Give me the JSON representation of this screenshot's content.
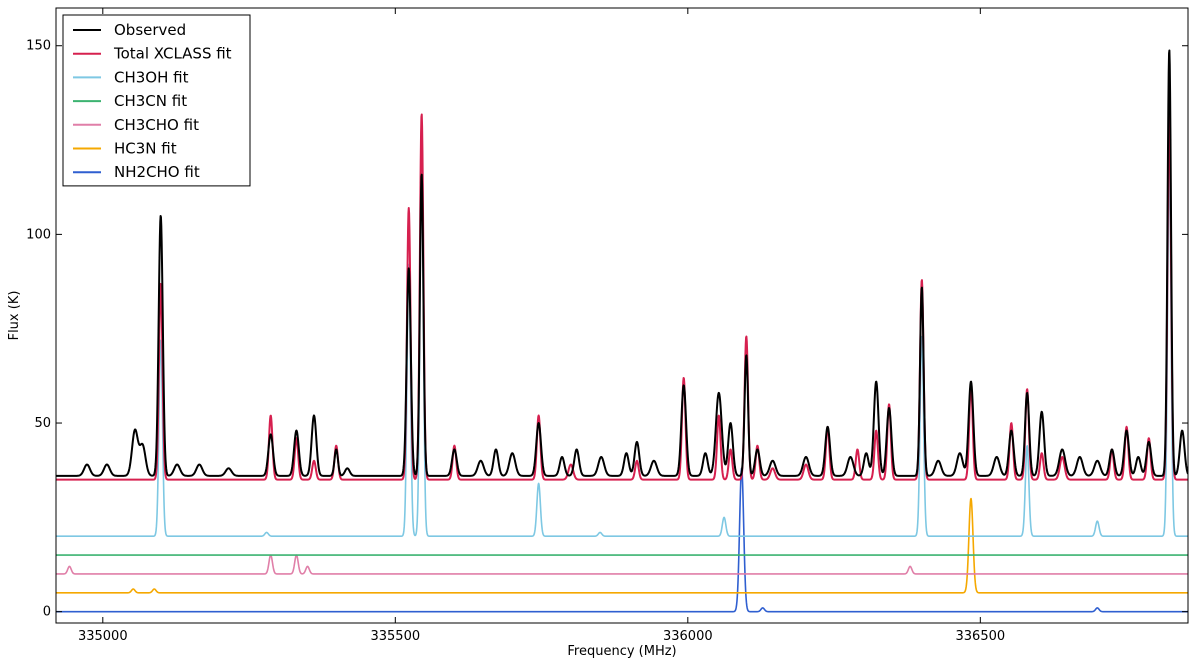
{
  "chart_data": {
    "type": "line",
    "xlabel": "Frequency (MHz)",
    "ylabel": "Flux (K)",
    "xlim": [
      334920,
      336855
    ],
    "ylim": [
      -3,
      160
    ],
    "xticks": [
      335000,
      335500,
      336000,
      336500
    ],
    "yticks": [
      0,
      50,
      100,
      150
    ],
    "grid": false,
    "legend_position": "top-left",
    "series": [
      {
        "name": "Observed",
        "color": "#000000",
        "baseline": 36,
        "peaks": [
          [
            334973,
            3,
            5
          ],
          [
            335007,
            3,
            5
          ],
          [
            335055,
            12,
            5
          ],
          [
            335068,
            8,
            5
          ],
          [
            335099,
            69,
            3.5
          ],
          [
            335127,
            3,
            5
          ],
          [
            335165,
            3,
            5
          ],
          [
            335215,
            2,
            5
          ],
          [
            335287,
            11,
            4
          ],
          [
            335331,
            12,
            4
          ],
          [
            335361,
            16,
            4
          ],
          [
            335399,
            7,
            3
          ],
          [
            335418,
            2,
            4
          ],
          [
            335523,
            55,
            3.5
          ],
          [
            335545,
            80,
            3
          ],
          [
            335601,
            7,
            4
          ],
          [
            335646,
            4,
            5
          ],
          [
            335672,
            7,
            4
          ],
          [
            335700,
            6,
            5
          ],
          [
            335745,
            14,
            4
          ],
          [
            335785,
            5,
            4
          ],
          [
            335810,
            7,
            4
          ],
          [
            335852,
            5,
            5
          ],
          [
            335895,
            6,
            4
          ],
          [
            335913,
            9,
            4
          ],
          [
            335942,
            4,
            5
          ],
          [
            335993,
            24,
            4
          ],
          [
            336030,
            6,
            4
          ],
          [
            336053,
            22,
            5
          ],
          [
            336073,
            14,
            4
          ],
          [
            336100,
            32,
            3
          ],
          [
            336119,
            7,
            4
          ],
          [
            336145,
            4,
            5
          ],
          [
            336202,
            5,
            5
          ],
          [
            336239,
            13,
            4
          ],
          [
            336278,
            5,
            5
          ],
          [
            336305,
            6,
            4
          ],
          [
            336322,
            25,
            4
          ],
          [
            336344,
            18,
            4
          ],
          [
            336400,
            50,
            3
          ],
          [
            336428,
            4,
            5
          ],
          [
            336465,
            6,
            5
          ],
          [
            336484,
            25,
            4
          ],
          [
            336528,
            5,
            5
          ],
          [
            336553,
            12,
            4
          ],
          [
            336580,
            22,
            3.5
          ],
          [
            336605,
            17,
            4
          ],
          [
            336640,
            7,
            5
          ],
          [
            336670,
            5,
            5
          ],
          [
            336700,
            4,
            5
          ],
          [
            336725,
            7,
            4
          ],
          [
            336750,
            12,
            4
          ],
          [
            336770,
            5,
            4
          ],
          [
            336788,
            9,
            4
          ],
          [
            336823,
            113,
            3
          ],
          [
            336845,
            12,
            4
          ]
        ]
      },
      {
        "name": "Total XCLASS fit",
        "color": "#d6204f",
        "baseline": 35,
        "peaks": [
          [
            335099,
            52,
            3
          ],
          [
            335287,
            17,
            3
          ],
          [
            335331,
            11,
            3
          ],
          [
            335361,
            5,
            3
          ],
          [
            335399,
            9,
            3
          ],
          [
            335523,
            72,
            3
          ],
          [
            335545,
            97,
            3
          ],
          [
            335601,
            9,
            3
          ],
          [
            335745,
            17,
            3
          ],
          [
            335800,
            4,
            4
          ],
          [
            335913,
            5,
            3
          ],
          [
            335993,
            27,
            3
          ],
          [
            336053,
            17,
            3
          ],
          [
            336073,
            8,
            3
          ],
          [
            336100,
            38,
            3
          ],
          [
            336119,
            9,
            3
          ],
          [
            336145,
            3,
            4
          ],
          [
            336202,
            4,
            4
          ],
          [
            336239,
            14,
            3
          ],
          [
            336290,
            8,
            3
          ],
          [
            336322,
            13,
            3
          ],
          [
            336344,
            20,
            3
          ],
          [
            336400,
            53,
            3
          ],
          [
            336484,
            25,
            3
          ],
          [
            336553,
            15,
            3
          ],
          [
            336580,
            24,
            3
          ],
          [
            336605,
            7,
            3
          ],
          [
            336640,
            6,
            4
          ],
          [
            336725,
            8,
            3
          ],
          [
            336750,
            14,
            3
          ],
          [
            336788,
            11,
            3
          ],
          [
            336823,
            97,
            3
          ]
        ]
      },
      {
        "name": "CH3OH fit",
        "color": "#7ec8e3",
        "baseline": 20,
        "peaks": [
          [
            335099,
            52,
            3
          ],
          [
            335280,
            1,
            3
          ],
          [
            335523,
            72,
            3
          ],
          [
            335545,
            97,
            3
          ],
          [
            335745,
            14,
            3
          ],
          [
            335850,
            1,
            3
          ],
          [
            336062,
            5,
            3
          ],
          [
            336400,
            53,
            3
          ],
          [
            336580,
            24,
            3
          ],
          [
            336700,
            4,
            3
          ],
          [
            336823,
            97,
            3
          ]
        ]
      },
      {
        "name": "CH3CN fit",
        "color": "#3cb371",
        "baseline": 15,
        "peaks": []
      },
      {
        "name": "CH3CHO fit",
        "color": "#e07fa8",
        "baseline": 10,
        "peaks": [
          [
            334943,
            2,
            3
          ],
          [
            335287,
            5,
            3
          ],
          [
            335331,
            5,
            3
          ],
          [
            335350,
            2,
            3
          ],
          [
            336380,
            2,
            3
          ]
        ]
      },
      {
        "name": "HC3N fit",
        "color": "#f5a800",
        "baseline": 5,
        "peaks": [
          [
            335052,
            1,
            3
          ],
          [
            335088,
            1,
            3
          ],
          [
            336484,
            25,
            3.5
          ]
        ]
      },
      {
        "name": "NH2CHO fit",
        "color": "#2f5fd0",
        "baseline": 0,
        "peaks": [
          [
            336092,
            38,
            3.5
          ],
          [
            336128,
            1,
            3
          ],
          [
            336700,
            1,
            3
          ]
        ]
      }
    ]
  }
}
